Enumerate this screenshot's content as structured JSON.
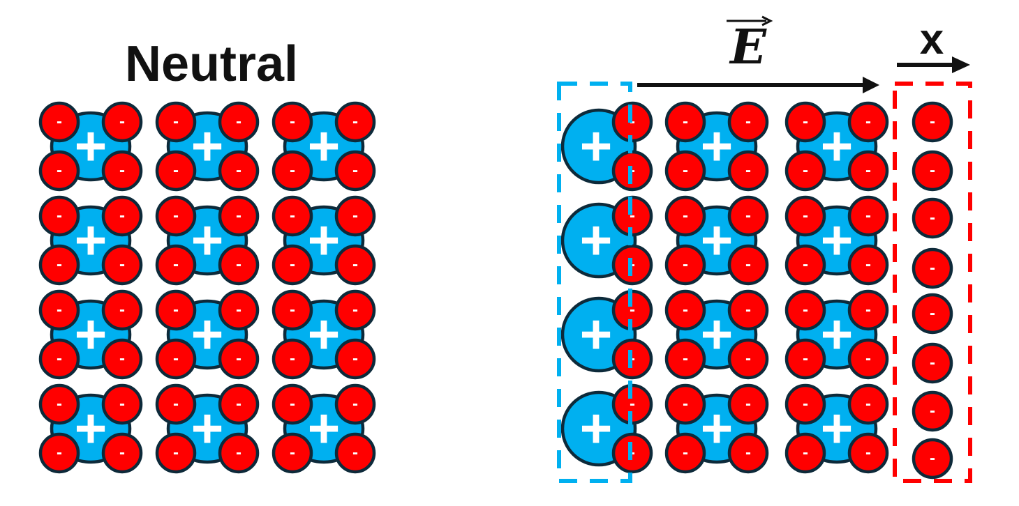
{
  "panels": {
    "neutral": {
      "title": "Neutral"
    },
    "polarized": {
      "field_symbol": "E",
      "displacement_label": "x"
    }
  },
  "symbols": {
    "negative": "-",
    "positive": "+"
  },
  "grid": {
    "rows": 4,
    "columns": 3,
    "electrons_per_atom": 4
  },
  "colors": {
    "nucleus": "#00b0f0",
    "electron": "#ff0000",
    "outline": "#0d2a3a",
    "text": "#111111",
    "positive_region": "#00b0f0",
    "negative_region": "#ff0000"
  }
}
